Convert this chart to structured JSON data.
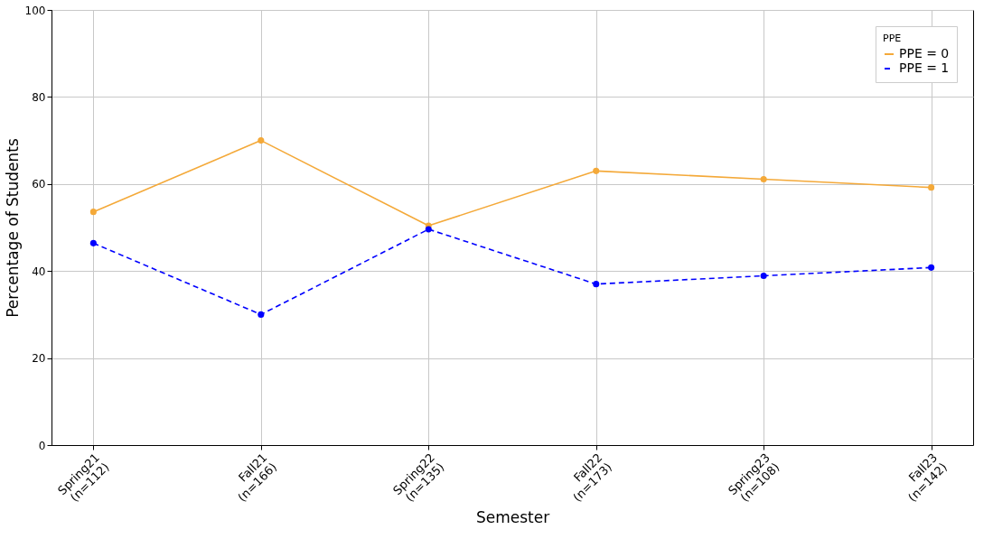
{
  "chart_data": {
    "type": "line",
    "xlabel": "Semester",
    "ylabel": "Percentage of Students",
    "legend_title": "PPE",
    "categories": [
      "Spring21\n(n=112)",
      "Fall21\n(n=166)",
      "Spring22\n(n=135)",
      "Fall22\n(n=173)",
      "Spring23\n(n=108)",
      "Fall23\n(n=142)"
    ],
    "series": [
      {
        "name": "PPE = 0",
        "color": "#f4a939",
        "line_style": "solid",
        "values": [
          53.6,
          70.0,
          50.4,
          63.0,
          61.1,
          59.2
        ]
      },
      {
        "name": "PPE = 1",
        "color": "#0000ff",
        "line_style": "dashed",
        "values": [
          46.4,
          30.0,
          49.6,
          37.0,
          38.9,
          40.8
        ]
      }
    ],
    "ylim": [
      0,
      100
    ],
    "yticks": [
      0,
      20,
      40,
      60,
      80,
      100
    ],
    "grid": true,
    "legend": "top right",
    "marker": "circle"
  }
}
